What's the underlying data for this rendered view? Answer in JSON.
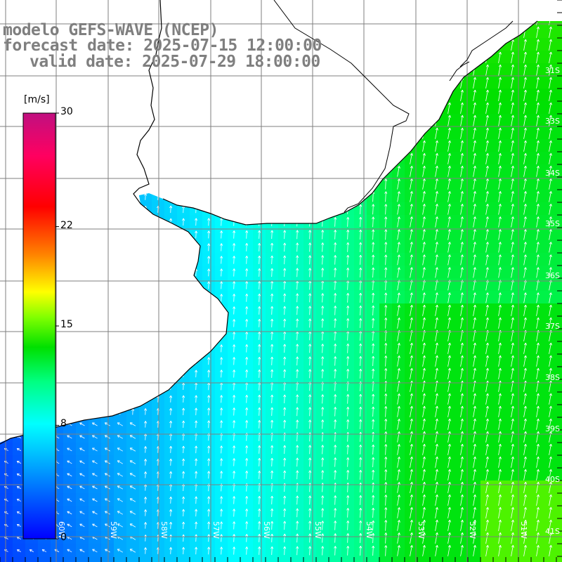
{
  "title": {
    "line1": "modelo GEFS-WAVE (NCEP)",
    "line2": "forecast date: 2025-07-15 12:00:00",
    "line3": "valid date: 2025-07-29 18:00:00"
  },
  "colorbar": {
    "unit": "[m/s]",
    "ticks": [
      {
        "label": "30",
        "value": 30
      },
      {
        "label": "22",
        "value": 22
      },
      {
        "label": "15",
        "value": 15
      },
      {
        "label": "8",
        "value": 8
      },
      {
        "label": "0",
        "value": 0
      }
    ],
    "min": 0,
    "max": 30,
    "colors": [
      "#0000ff",
      "#00a0ff",
      "#00ffff",
      "#00ff80",
      "#00e000",
      "#80ff00",
      "#ffff00",
      "#ff8000",
      "#ff0000",
      "#ff0060",
      "#c01080"
    ]
  },
  "map": {
    "land_color": "#ffffff",
    "grid_color": "#7f7f7f",
    "coast_color": "#000000",
    "arrow_color": "#ffffff",
    "lat_labels": [
      "31S",
      "33S",
      "34S",
      "35S",
      "36S",
      "37S",
      "38S",
      "39S",
      "40S",
      "41S"
    ],
    "lon_labels": [
      "60W",
      "59W",
      "58W",
      "57W",
      "56W",
      "55W",
      "54W",
      "53W",
      "52W",
      "51W"
    ]
  }
}
